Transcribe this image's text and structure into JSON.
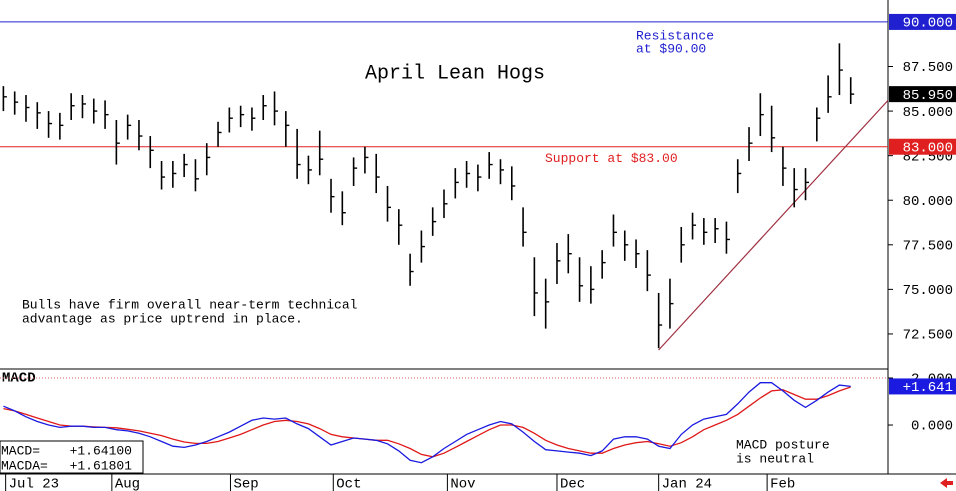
{
  "chart_data": [
    {
      "type": "ohlc",
      "title": "April Lean Hogs",
      "color": "#000000",
      "x": [
        0,
        1,
        2,
        3,
        4,
        5,
        6,
        7,
        8,
        9,
        10,
        11,
        12,
        13,
        14,
        15,
        16,
        17,
        18,
        19,
        20,
        21,
        22,
        23,
        24,
        25,
        26,
        27,
        28,
        29,
        30,
        31,
        32,
        33,
        34,
        35,
        36,
        37,
        38,
        39,
        40,
        41,
        42,
        43,
        44,
        45,
        46,
        47,
        48,
        49,
        50,
        51,
        52,
        53,
        54,
        55,
        56,
        57,
        58,
        59,
        60,
        61,
        62,
        63,
        64,
        65,
        66,
        67,
        68,
        69,
        70,
        71,
        72,
        73,
        74,
        75
      ],
      "high": [
        86.4,
        86.1,
        85.9,
        85.5,
        85.0,
        84.9,
        86.0,
        85.9,
        85.7,
        85.6,
        84.5,
        84.8,
        84.5,
        83.6,
        82.2,
        82.2,
        82.6,
        82.3,
        83.2,
        84.4,
        85.2,
        85.3,
        85.2,
        85.9,
        86.1,
        85.0,
        84.0,
        82.5,
        83.9,
        81.2,
        80.5,
        82.4,
        83.0,
        82.6,
        80.8,
        79.5,
        77.0,
        78.3,
        79.6,
        80.6,
        81.8,
        82.2,
        82.0,
        82.7,
        82.3,
        81.9,
        79.6,
        76.8,
        75.6,
        77.6,
        78.1,
        76.8,
        76.3,
        77.2,
        79.2,
        78.3,
        77.8,
        77.2,
        74.8,
        75.6,
        78.5,
        79.3,
        79.0,
        79.0,
        78.8,
        82.3,
        84.1,
        86.0,
        85.3,
        83.0,
        81.8,
        81.8,
        85.2,
        87.0,
        88.8,
        86.9
      ],
      "low": [
        85.0,
        84.8,
        84.4,
        84.0,
        83.5,
        83.4,
        84.5,
        84.6,
        84.3,
        84.0,
        82.0,
        83.4,
        82.8,
        81.8,
        80.6,
        80.7,
        81.3,
        80.5,
        81.4,
        83.0,
        83.8,
        84.1,
        83.9,
        84.5,
        84.2,
        83.0,
        81.2,
        80.9,
        81.4,
        79.3,
        78.6,
        80.8,
        81.5,
        80.4,
        78.8,
        77.5,
        75.2,
        76.5,
        78.0,
        79.0,
        80.1,
        80.7,
        80.5,
        81.2,
        80.9,
        80.0,
        77.4,
        73.5,
        72.8,
        75.3,
        75.9,
        74.3,
        74.2,
        75.6,
        77.4,
        76.6,
        76.2,
        74.9,
        71.7,
        72.8,
        76.5,
        77.8,
        77.5,
        77.6,
        77.0,
        80.4,
        82.2,
        83.6,
        82.7,
        80.8,
        79.6,
        80.0,
        83.3,
        84.9,
        85.9,
        85.4
      ],
      "close": [
        85.8,
        85.5,
        85.2,
        84.9,
        84.3,
        84.2,
        85.3,
        85.4,
        85.0,
        84.8,
        83.2,
        84.2,
        83.6,
        82.8,
        81.3,
        81.5,
        82.0,
        81.2,
        82.4,
        83.8,
        84.6,
        84.8,
        84.6,
        85.3,
        85.0,
        84.2,
        82.0,
        81.7,
        82.3,
        80.2,
        79.3,
        81.8,
        82.4,
        81.3,
        79.6,
        78.6,
        76.0,
        77.4,
        78.8,
        79.8,
        81.0,
        81.5,
        81.3,
        82.0,
        81.7,
        80.8,
        78.2,
        74.8,
        74.3,
        76.6,
        77.0,
        75.2,
        75.0,
        76.5,
        78.2,
        77.5,
        77.0,
        75.8,
        73.0,
        74.2,
        77.5,
        78.6,
        78.2,
        78.4,
        77.8,
        81.5,
        83.2,
        84.8,
        83.5,
        81.8,
        80.6,
        81.0,
        84.6,
        85.8,
        87.3,
        85.95
      ],
      "xlim": [
        -0.3,
        78.3
      ],
      "ylim": [
        70.59,
        91.23
      ],
      "xticks": [
        {
          "value": 0.2,
          "label": "Jul 23"
        },
        {
          "value": 9.6,
          "label": "Aug"
        },
        {
          "value": 20.1,
          "label": "Sep"
        },
        {
          "value": 29.2,
          "label": "Oct"
        },
        {
          "value": 39.3,
          "label": "Nov"
        },
        {
          "value": 49,
          "label": "Dec"
        },
        {
          "value": 58,
          "label": "Jan 24"
        },
        {
          "value": 67.6,
          "label": "Feb"
        }
      ],
      "yticks": [
        {
          "value": 72.5,
          "label": "72.500"
        },
        {
          "value": 75,
          "label": "75.000"
        },
        {
          "value": 77.5,
          "label": "77.500"
        },
        {
          "value": 80,
          "label": "80.000"
        },
        {
          "value": 82.5,
          "label": "82.500"
        },
        {
          "value": 85,
          "label": "85.000"
        },
        {
          "value": 87.5,
          "label": "87.500"
        }
      ],
      "hlines": [
        {
          "value": 90,
          "label": "90.000",
          "color": "#2020d0",
          "text": [
            "Resistance",
            "at $90.00"
          ]
        },
        {
          "value": 83,
          "label": "83.000",
          "color": "#e02020",
          "text": [
            "Support at $83.00"
          ]
        }
      ],
      "last_tag": {
        "value": 85.95,
        "label": "85.950",
        "color": "#000000"
      },
      "trendline": {
        "x": [
          58,
          78.3
        ],
        "y": [
          71.6,
          85.6
        ],
        "color": "#a03040"
      },
      "annotation": [
        "Bulls have firm overall near-term technical",
        "advantage as price uptrend in place."
      ]
    },
    {
      "type": "line",
      "title": "MACD",
      "x": [
        0,
        1,
        2,
        3,
        4,
        5,
        6,
        7,
        8,
        9,
        10,
        11,
        12,
        13,
        14,
        15,
        16,
        17,
        18,
        19,
        20,
        21,
        22,
        23,
        24,
        25,
        26,
        27,
        28,
        29,
        30,
        31,
        32,
        33,
        34,
        35,
        36,
        37,
        38,
        39,
        40,
        41,
        42,
        43,
        44,
        45,
        46,
        47,
        48,
        49,
        50,
        51,
        52,
        53,
        54,
        55,
        56,
        57,
        58,
        59,
        60,
        61,
        62,
        63,
        64,
        65,
        66,
        67,
        68,
        69,
        70,
        71,
        72,
        73,
        74,
        75
      ],
      "series": [
        {
          "name": "MACD=",
          "color": "#1a1ae0",
          "value_label": "+1.64100",
          "values": [
            0.8,
            0.6,
            0.35,
            0.15,
            0.0,
            -0.1,
            -0.05,
            -0.05,
            -0.1,
            -0.1,
            -0.2,
            -0.25,
            -0.35,
            -0.5,
            -0.7,
            -0.9,
            -0.95,
            -0.85,
            -0.7,
            -0.5,
            -0.3,
            -0.05,
            0.2,
            0.3,
            0.25,
            0.3,
            0.05,
            -0.15,
            -0.5,
            -0.85,
            -0.7,
            -0.55,
            -0.6,
            -0.65,
            -0.8,
            -1.1,
            -1.5,
            -1.6,
            -1.35,
            -1.0,
            -0.7,
            -0.4,
            -0.2,
            0.0,
            0.15,
            0.05,
            -0.3,
            -0.7,
            -1.05,
            -1.1,
            -1.15,
            -1.2,
            -1.3,
            -1.1,
            -0.6,
            -0.5,
            -0.5,
            -0.6,
            -0.9,
            -1.0,
            -0.4,
            0.0,
            0.25,
            0.35,
            0.45,
            0.9,
            1.4,
            1.8,
            1.8,
            1.45,
            1.05,
            0.75,
            1.05,
            1.4,
            1.7,
            1.641
          ]
        },
        {
          "name": "MACDA=",
          "color": "#e01818",
          "value_label": "+1.61801",
          "values": [
            0.7,
            0.6,
            0.45,
            0.3,
            0.15,
            0.0,
            -0.05,
            -0.05,
            -0.08,
            -0.1,
            -0.12,
            -0.18,
            -0.25,
            -0.35,
            -0.45,
            -0.6,
            -0.72,
            -0.78,
            -0.78,
            -0.7,
            -0.55,
            -0.4,
            -0.2,
            0.0,
            0.15,
            0.2,
            0.15,
            0.05,
            -0.15,
            -0.4,
            -0.5,
            -0.55,
            -0.6,
            -0.65,
            -0.65,
            -0.8,
            -1.0,
            -1.25,
            -1.35,
            -1.2,
            -0.95,
            -0.7,
            -0.45,
            -0.2,
            0.0,
            0.0,
            -0.1,
            -0.35,
            -0.65,
            -0.85,
            -1.0,
            -1.1,
            -1.2,
            -1.2,
            -1.0,
            -0.85,
            -0.75,
            -0.7,
            -0.8,
            -0.9,
            -0.75,
            -0.5,
            -0.2,
            0.0,
            0.2,
            0.45,
            0.8,
            1.15,
            1.45,
            1.5,
            1.3,
            1.1,
            1.1,
            1.25,
            1.45,
            1.61801
          ]
        }
      ],
      "xlim": [
        -0.3,
        78.3
      ],
      "ylim": [
        -2.04,
        2.34
      ],
      "yticks": [
        {
          "value": 0,
          "label": "0.000"
        },
        {
          "value": 2,
          "label": "2.000"
        }
      ],
      "last_tag": {
        "value": 1.641,
        "label": "+1.641",
        "color": "#1a1ae0"
      },
      "annotation": [
        "MACD posture",
        "is neutral"
      ]
    }
  ]
}
